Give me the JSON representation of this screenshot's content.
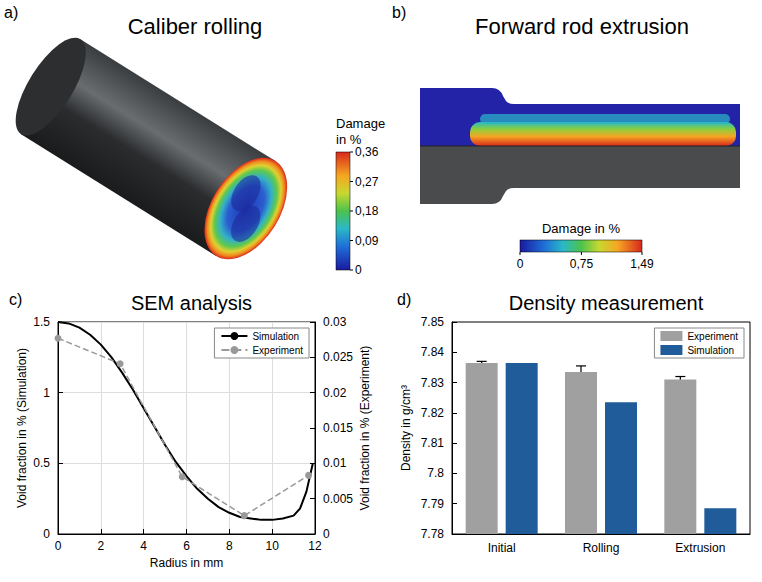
{
  "panels": [
    {
      "panel_label": "a)",
      "title": "Caliber rolling",
      "colorbar": {
        "title": "Damage in %",
        "range": [
          0,
          0.36
        ],
        "ticks": [
          0,
          {
            "value": 0.09,
            "label": "0,09"
          },
          {
            "value": 0.18,
            "label": "0,18"
          },
          {
            "value": 0.27,
            "label": "0,27"
          },
          {
            "value": 0.36,
            "label": "0,36"
          }
        ]
      }
    },
    {
      "panel_label": "b)",
      "title": "Forward rod extrusion",
      "colorbar": {
        "title": "Damage in %",
        "range": [
          0,
          1.49
        ],
        "ticks": [
          0,
          {
            "value": 0.75,
            "label": "0,75"
          },
          {
            "value": 1.49,
            "label": "1,49"
          }
        ]
      }
    }
  ],
  "chart_data": [
    {
      "panel_label": "c)",
      "type": "line",
      "title": "SEM analysis",
      "x_label": "Radius in mm",
      "y_label": "Void fraction in % (Simulation)",
      "y2_label": "Void fraction in % (Experiment)",
      "xlim": [
        0,
        12
      ],
      "xticks": [
        0,
        2,
        4,
        6,
        8,
        10,
        12
      ],
      "ylim": [
        0,
        1.5
      ],
      "yticks": [
        0,
        0.5,
        1,
        1.5
      ],
      "y2lim": [
        0,
        0.03
      ],
      "y2ticks": [
        0,
        0.005,
        0.01,
        0.015,
        0.02,
        0.025,
        0.03
      ],
      "grid": true,
      "legend": "top-right",
      "series": [
        {
          "name": "Simulation",
          "color": "#000000",
          "line_style": "solid",
          "marker": "none",
          "x": [
            0,
            0.5,
            1,
            1.5,
            2,
            2.5,
            3,
            3.5,
            4,
            4.5,
            5,
            5.5,
            6,
            6.5,
            7,
            7.5,
            8,
            8.5,
            9,
            9.5,
            10,
            10.5,
            11,
            11.3,
            11.6,
            11.9
          ],
          "values": [
            1.5,
            1.49,
            1.46,
            1.41,
            1.34,
            1.25,
            1.14,
            1.02,
            0.89,
            0.76,
            0.63,
            0.51,
            0.41,
            0.32,
            0.25,
            0.19,
            0.15,
            0.12,
            0.11,
            0.1,
            0.1,
            0.11,
            0.13,
            0.18,
            0.3,
            0.5
          ]
        },
        {
          "name": "Experiment",
          "color": "#999999",
          "line_style": "dashed",
          "marker": "circle",
          "axis": "y2",
          "x": [
            0,
            2.9,
            5.8,
            8.7,
            11.7
          ],
          "values": [
            0.0277,
            0.0241,
            0.0081,
            0.0026,
            0.0083
          ]
        }
      ]
    },
    {
      "panel_label": "d)",
      "type": "bar",
      "title": "Density measurement",
      "y_label": "Density in g/cm³",
      "categories": [
        "Initial",
        "Rolling",
        "Extrusion"
      ],
      "ylim": [
        7.78,
        7.85
      ],
      "yticks": [
        7.78,
        7.79,
        7.8,
        7.81,
        7.82,
        7.83,
        7.84,
        7.85
      ],
      "grid": false,
      "legend": "top-right",
      "series": [
        {
          "name": "Experiment",
          "color": "#a0a0a0",
          "values": [
            7.8365,
            7.8335,
            7.831
          ],
          "errors": [
            0.0005,
            0.002,
            0.001
          ]
        },
        {
          "name": "Simulation",
          "color": "#1f5c99",
          "values": [
            7.8365,
            7.8235,
            7.7885
          ]
        }
      ]
    }
  ]
}
